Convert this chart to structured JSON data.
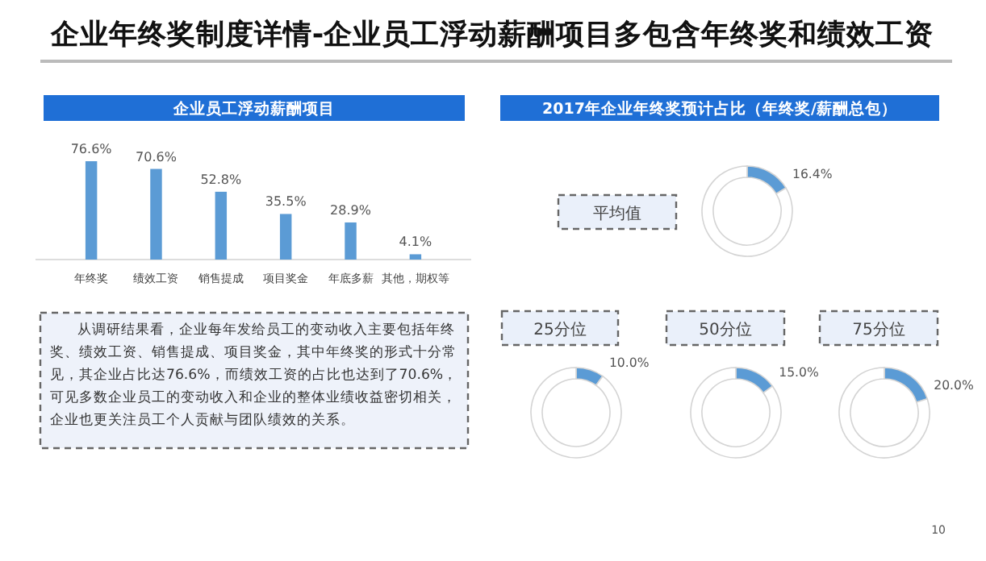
{
  "chart_data": [
    {
      "type": "other",
      "title": "企业年终奖制度详情-企业员工浮动薪酬项目多包含年终奖和绩效工资",
      "annotations": [
        "从调研结果看，企业每年发给员工的变动收入主要包括年终奖、绩效工资、销售提成、项目奖金，其中年终奖的形式十分常见，其企业占比达76.6%，而绩效工资的占比也达到了70.6%，可见多数企业员工的变动收入和企业的整体业绩收益密切相关，企业也更关注员工个人贡献与团队绩效的关系。",
        "10"
      ]
    },
    {
      "type": "bar",
      "title": "企业员工浮动薪酬项目",
      "categories": [
        "年终奖",
        "绩效工资",
        "销售提成",
        "项目奖金",
        "年底多薪",
        "其他，期权等"
      ],
      "values": [
        76.6,
        70.6,
        52.8,
        35.5,
        28.9,
        4.1
      ],
      "color": "#5b9bd5",
      "value_labels": [
        "76.6%",
        "70.6%",
        "52.8%",
        "35.5%",
        "28.9%",
        "4.1%"
      ]
    },
    {
      "type": "donut",
      "title": "2017年企业年终奖预计占比（年终奖/薪酬总包）",
      "subtitle": "平均值",
      "categories": [
        null,
        null
      ],
      "values": [
        16.4,
        83.6
      ],
      "colors": [
        "#5b9bd5",
        "#ffffff"
      ],
      "value_labels": [
        "16.4%",
        null
      ]
    },
    {
      "type": "donut",
      "title": "25分位",
      "categories": [
        null,
        null
      ],
      "values": [
        10.0,
        90.0
      ],
      "colors": [
        "#5b9bd5",
        "#ffffff"
      ],
      "value_labels": [
        "10.0%",
        null
      ]
    },
    {
      "type": "donut",
      "title": "50分位",
      "categories": [
        null,
        null
      ],
      "values": [
        15.0,
        85.0
      ],
      "colors": [
        "#5b9bd5",
        "#ffffff"
      ],
      "value_labels": [
        "15.0%",
        null
      ]
    },
    {
      "type": "donut",
      "title": "75分位",
      "categories": [
        null,
        null
      ],
      "values": [
        20.0,
        80.0
      ],
      "colors": [
        "#5b9bd5",
        "#ffffff"
      ],
      "value_labels": [
        "20.0%",
        null
      ]
    }
  ]
}
